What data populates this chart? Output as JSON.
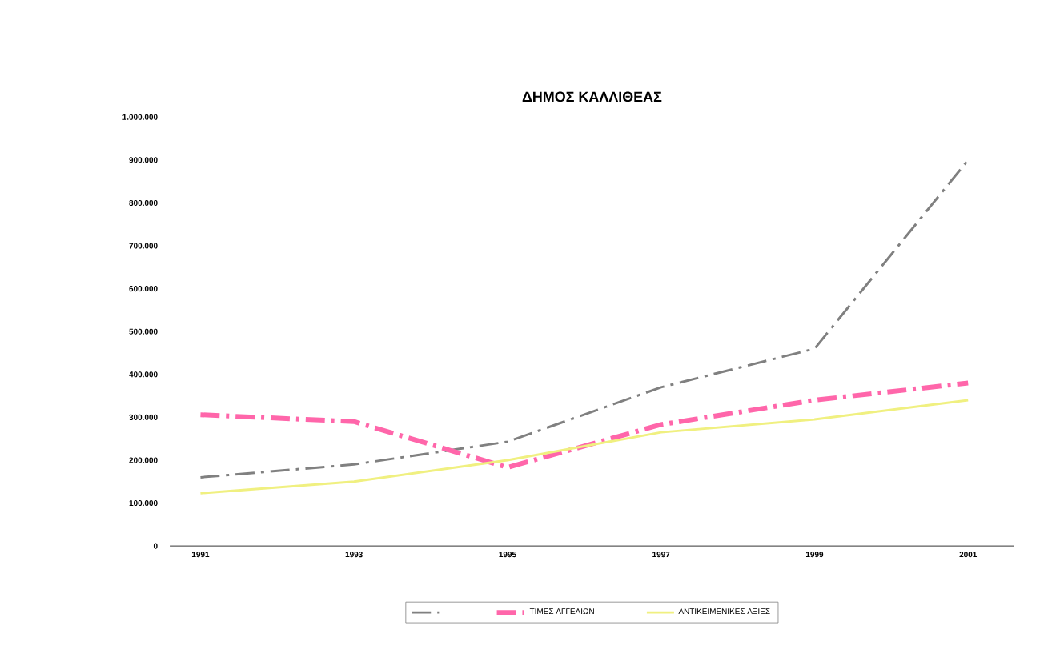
{
  "chart_data": {
    "type": "line",
    "title": "ΔΗΜΟΣ ΚΑΛΛΙΘΕΑΣ",
    "x": [
      1991,
      1993,
      1995,
      1997,
      1999,
      2001
    ],
    "series": [
      {
        "color": "#808080",
        "line_style": "dashed",
        "values": [
          160000,
          190000,
          243000,
          370000,
          460000,
          900000
        ]
      },
      {
        "name": "ΤΙΜΕΣ ΑΓΓΕΛΙΩΝ",
        "color": "#ff66aa",
        "line_style": "dashed",
        "values": [
          306000,
          290000,
          183000,
          283000,
          340000,
          380000
        ]
      },
      {
        "name": "ΑΝΤΙΚΕΙΜΕΝΙΚΕΣ ΑΞΙΕΣ",
        "color": "#f0f080",
        "line_style": "solid",
        "values": [
          123000,
          150000,
          200000,
          265000,
          295000,
          340000
        ]
      }
    ],
    "xlim": [
      1990.6,
      2001.6
    ],
    "xticks": [
      1991,
      1993,
      1995,
      1997,
      1999,
      2001
    ],
    "ylim": [
      0,
      1000000
    ],
    "yticks": [
      0,
      {
        "value": 100000,
        "label": "100.000"
      },
      {
        "value": 200000,
        "label": "200.000"
      },
      {
        "value": 300000,
        "label": "300.000"
      },
      {
        "value": 400000,
        "label": "400.000"
      },
      {
        "value": 500000,
        "label": "500.000"
      },
      {
        "value": 600000,
        "label": "600.000"
      },
      {
        "value": 700000,
        "label": "700.000"
      },
      {
        "value": 800000,
        "label": "800.000"
      },
      {
        "value": 900000,
        "label": "900.000"
      },
      {
        "value": 1000000,
        "label": "1.000.000"
      }
    ],
    "grid": false,
    "legend": "bottom",
    "marker": "none"
  }
}
